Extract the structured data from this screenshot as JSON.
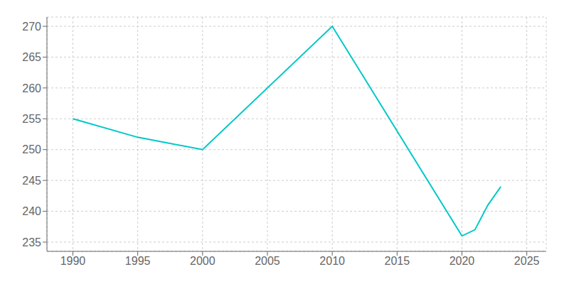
{
  "chart_data": {
    "type": "line",
    "x": [
      1990,
      1995,
      2000,
      2010,
      2020,
      2021,
      2022,
      2023
    ],
    "values": [
      255,
      252,
      250,
      270,
      236,
      237,
      241,
      244
    ],
    "color": "#00C8C8",
    "xlim": [
      1988,
      2026.5
    ],
    "ylim": [
      233.5,
      271.5
    ],
    "xticks": [
      1990,
      1995,
      2000,
      2005,
      2010,
      2015,
      2020,
      2025
    ],
    "yticks": [
      235,
      240,
      245,
      250,
      255,
      260,
      265,
      270
    ],
    "grid": true
  }
}
